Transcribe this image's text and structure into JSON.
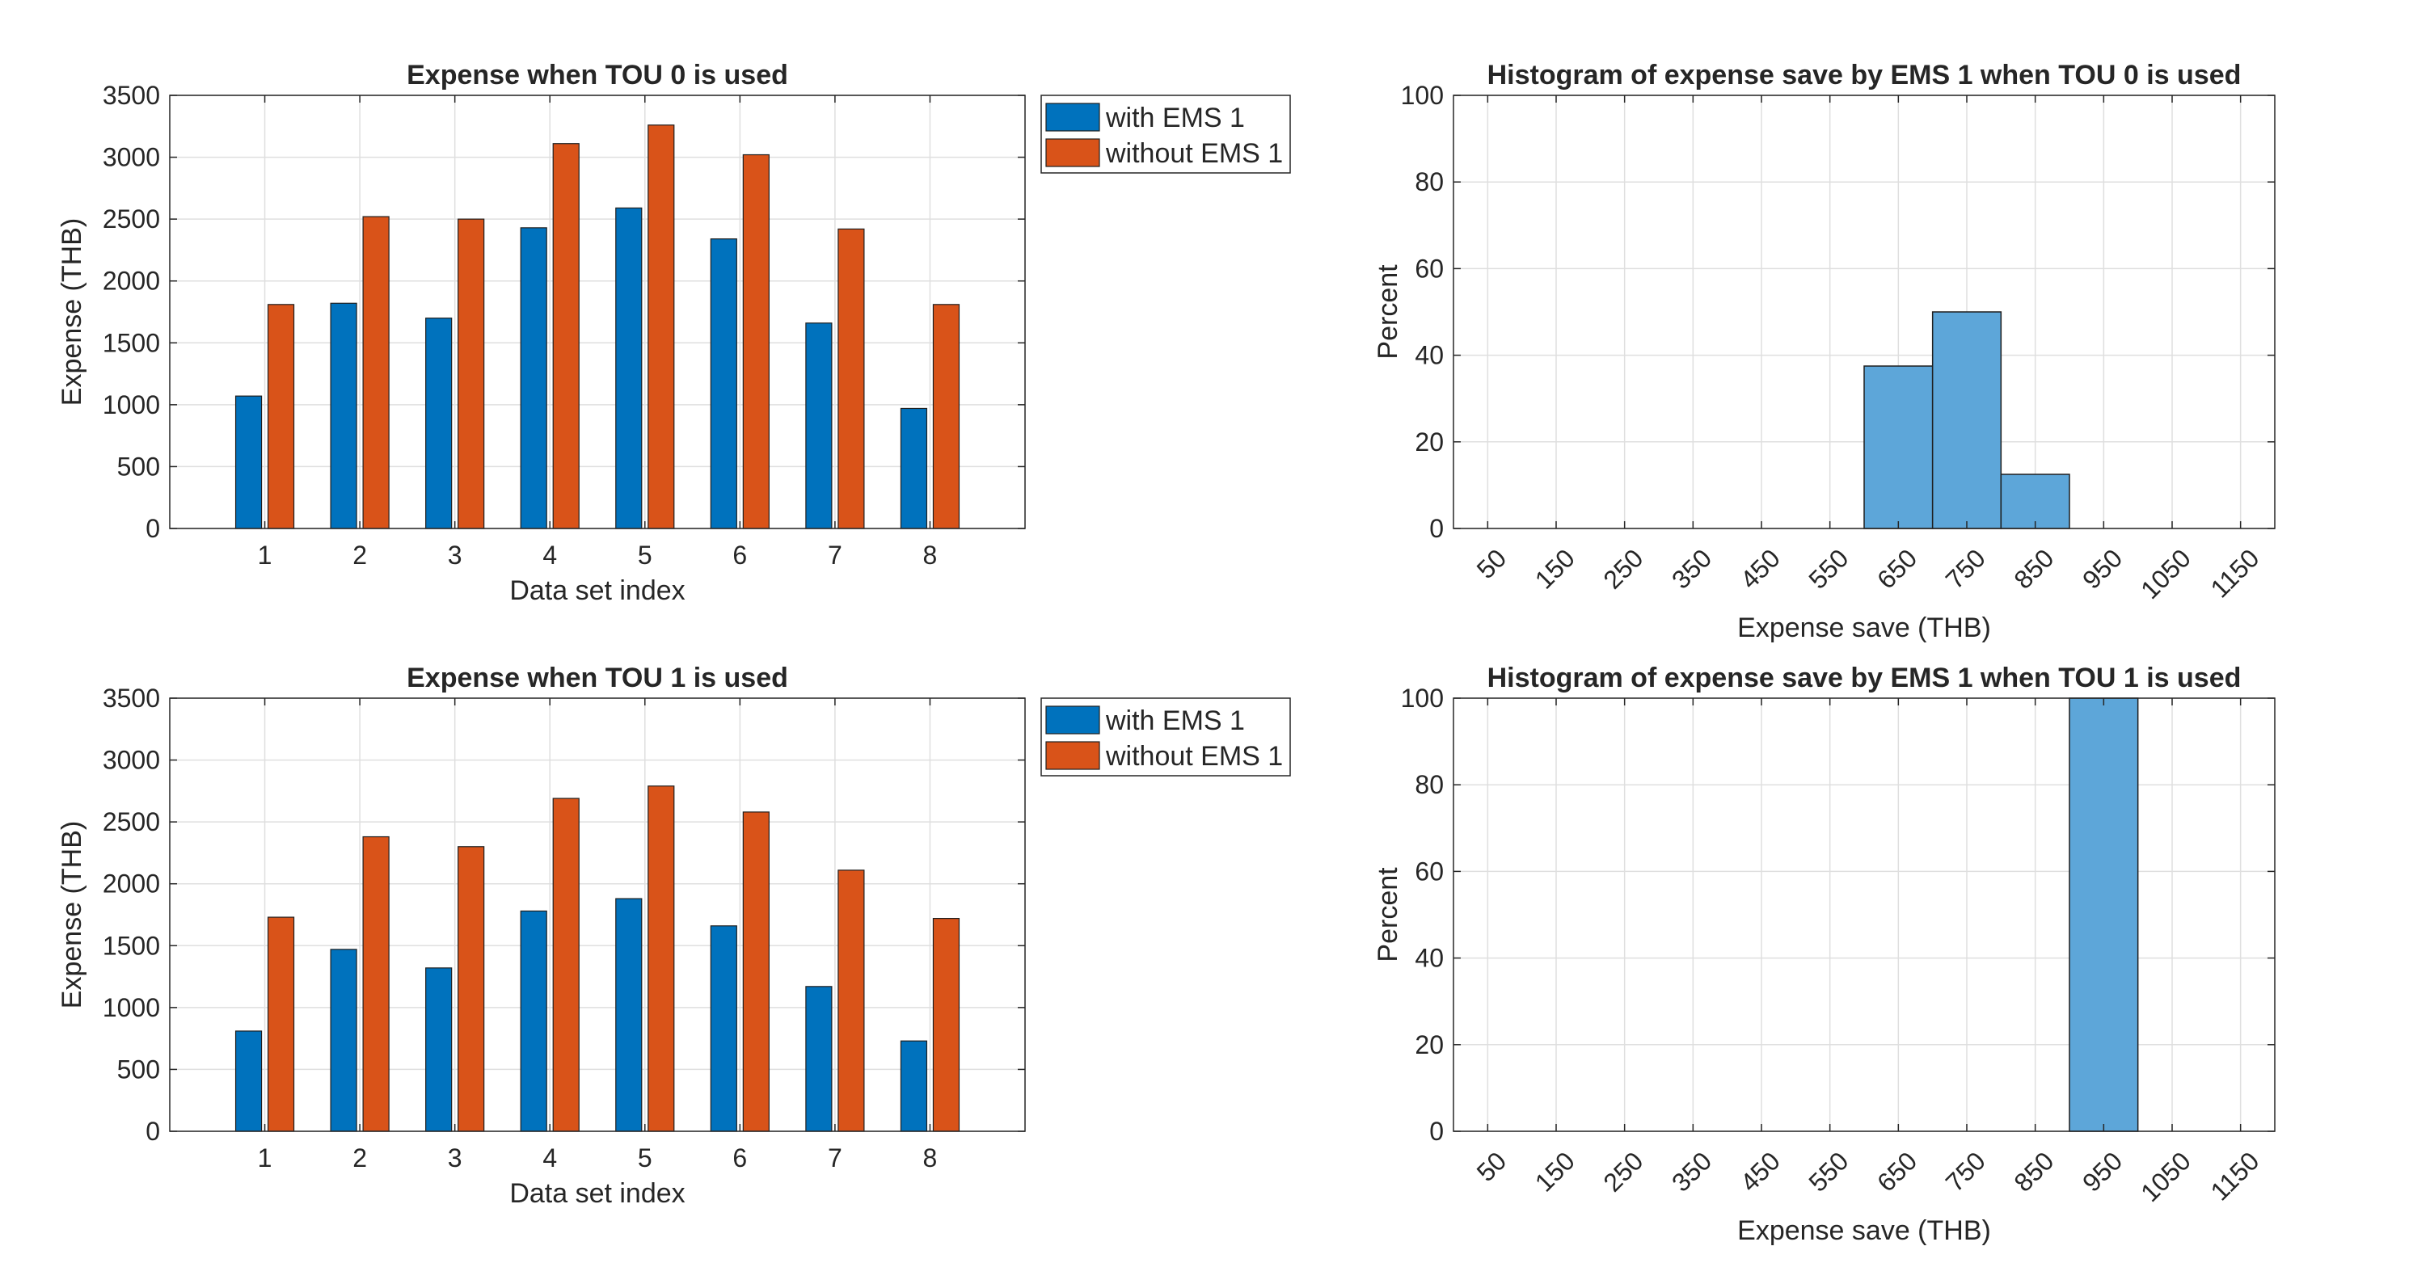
{
  "colors": {
    "with_ems": "#0072BD",
    "without_ems": "#D95319",
    "histogram": "#5DA6D9",
    "grid": "#DFDFDF",
    "axis": "#262626"
  },
  "chart_data": [
    {
      "type": "bar",
      "title": "Expense when TOU 0 is used",
      "xlabel": "Data set index",
      "ylabel": "Expense (THB)",
      "categories": [
        "1",
        "2",
        "3",
        "4",
        "5",
        "6",
        "7",
        "8"
      ],
      "ylim": [
        0,
        3500
      ],
      "yticks": [
        "0",
        "500",
        "1000",
        "1500",
        "2000",
        "2500",
        "3000",
        "3500"
      ],
      "grid": true,
      "legend_position": "outside-top-right",
      "series": [
        {
          "name": "with EMS 1",
          "values": [
            1070,
            1820,
            1700,
            2430,
            2590,
            2340,
            1660,
            970
          ]
        },
        {
          "name": "without EMS 1",
          "values": [
            1810,
            2520,
            2500,
            3110,
            3260,
            3020,
            2420,
            1810
          ]
        }
      ]
    },
    {
      "type": "bar",
      "subtype": "histogram",
      "title": "Histogram of expense save by EMS 1 when TOU 0 is used",
      "xlabel": "Expense save (THB)",
      "ylabel": "Percent",
      "xlim": [
        0,
        1200
      ],
      "ylim": [
        0,
        100
      ],
      "xticks": [
        "50",
        "150",
        "250",
        "350",
        "450",
        "550",
        "650",
        "750",
        "850",
        "950",
        "1050",
        "1150"
      ],
      "yticks": [
        "0",
        "20",
        "40",
        "60",
        "80",
        "100"
      ],
      "grid": true,
      "bins": [
        {
          "x0": 600,
          "x1": 700,
          "value": 37.5
        },
        {
          "x0": 700,
          "x1": 800,
          "value": 50
        },
        {
          "x0": 800,
          "x1": 900,
          "value": 12.5
        }
      ]
    },
    {
      "type": "bar",
      "title": "Expense when TOU 1 is used",
      "xlabel": "Data set index",
      "ylabel": "Expense (THB)",
      "categories": [
        "1",
        "2",
        "3",
        "4",
        "5",
        "6",
        "7",
        "8"
      ],
      "ylim": [
        0,
        3500
      ],
      "yticks": [
        "0",
        "500",
        "1000",
        "1500",
        "2000",
        "2500",
        "3000",
        "3500"
      ],
      "grid": true,
      "legend_position": "outside-top-right",
      "series": [
        {
          "name": "with EMS 1",
          "values": [
            810,
            1470,
            1320,
            1780,
            1880,
            1660,
            1170,
            730
          ]
        },
        {
          "name": "without EMS 1",
          "values": [
            1730,
            2380,
            2300,
            2690,
            2790,
            2580,
            2110,
            1720
          ]
        }
      ]
    },
    {
      "type": "bar",
      "subtype": "histogram",
      "title": "Histogram of expense save by EMS 1 when TOU 1 is used",
      "xlabel": "Expense save (THB)",
      "ylabel": "Percent",
      "xlim": [
        0,
        1200
      ],
      "ylim": [
        0,
        100
      ],
      "xticks": [
        "50",
        "150",
        "250",
        "350",
        "450",
        "550",
        "650",
        "750",
        "850",
        "950",
        "1050",
        "1150"
      ],
      "yticks": [
        "0",
        "20",
        "40",
        "60",
        "80",
        "100"
      ],
      "grid": true,
      "bins": [
        {
          "x0": 900,
          "x1": 1000,
          "value": 100
        }
      ]
    }
  ]
}
